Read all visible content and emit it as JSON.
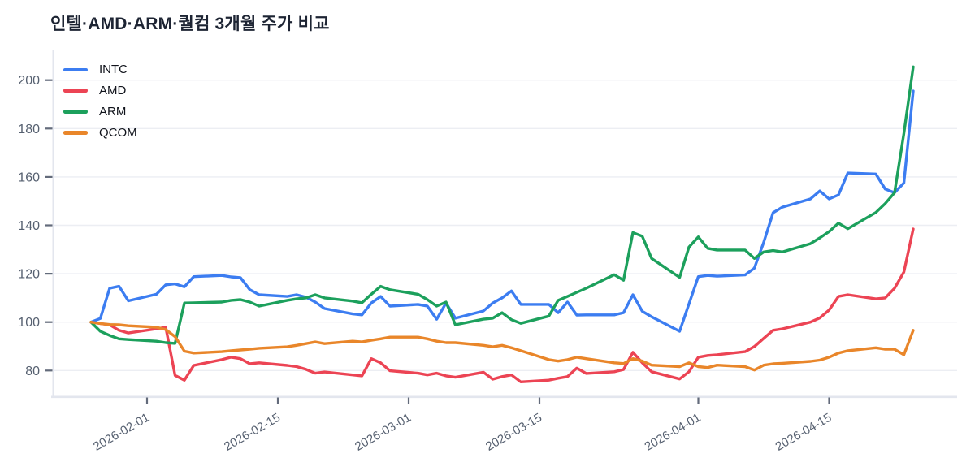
{
  "chart_data": {
    "type": "line",
    "title": "인텔·AMD·ARM·퀄컴 3개월 주가 비교",
    "xlabel": "",
    "ylabel": "",
    "grid": "horizontal",
    "legend_position": "top-left",
    "y_ticks": [
      80,
      100,
      120,
      140,
      160,
      180,
      200
    ],
    "ylim": [
      69,
      212
    ],
    "x_ticks": [
      "2026-02-01",
      "2026-02-15",
      "2026-03-01",
      "2026-03-15",
      "2026-04-01",
      "2026-04-15"
    ],
    "x": [
      "2026-01-26",
      "2026-01-27",
      "2026-01-28",
      "2026-01-29",
      "2026-01-30",
      "2026-02-02",
      "2026-02-03",
      "2026-02-04",
      "2026-02-05",
      "2026-02-06",
      "2026-02-09",
      "2026-02-10",
      "2026-02-11",
      "2026-02-12",
      "2026-02-13",
      "2026-02-16",
      "2026-02-17",
      "2026-02-18",
      "2026-02-19",
      "2026-02-20",
      "2026-02-23",
      "2026-02-24",
      "2026-02-25",
      "2026-02-26",
      "2026-02-27",
      "2026-03-02",
      "2026-03-03",
      "2026-03-04",
      "2026-03-05",
      "2026-03-06",
      "2026-03-09",
      "2026-03-10",
      "2026-03-11",
      "2026-03-12",
      "2026-03-13",
      "2026-03-16",
      "2026-03-17",
      "2026-03-18",
      "2026-03-19",
      "2026-03-20",
      "2026-03-23",
      "2026-03-24",
      "2026-03-25",
      "2026-03-26",
      "2026-03-27",
      "2026-03-30",
      "2026-03-31",
      "2026-04-01",
      "2026-04-02",
      "2026-04-03",
      "2026-04-06",
      "2026-04-07",
      "2026-04-08",
      "2026-04-09",
      "2026-04-10",
      "2026-04-13",
      "2026-04-14",
      "2026-04-15",
      "2026-04-16",
      "2026-04-17",
      "2026-04-20",
      "2026-04-21",
      "2026-04-22",
      "2026-04-23",
      "2026-04-24"
    ],
    "series": [
      {
        "name": "INTC",
        "color": "#3C7DF1",
        "values": [
          100,
          101.5,
          114,
          114.8,
          108.8,
          111.5,
          115.4,
          115.8,
          114.6,
          118.8,
          119.3,
          118.7,
          118.4,
          113.4,
          111.3,
          110.6,
          111.3,
          110.3,
          108.3,
          105.6,
          103.4,
          103,
          107.9,
          110.6,
          106.6,
          107.3,
          106.6,
          101.2,
          107.9,
          101.6,
          104.6,
          107.9,
          110,
          112.9,
          107.3,
          107.3,
          103.9,
          108.3,
          102.9,
          103,
          103,
          103.9,
          111.3,
          104.5,
          102.2,
          96.2,
          107.5,
          118.8,
          119.3,
          119,
          119.5,
          122.3,
          133,
          145.2,
          147.5,
          150.9,
          154.2,
          150.9,
          152.6,
          161.6,
          161.2,
          155,
          153.5,
          157.5,
          195.5
        ]
      },
      {
        "name": "AMD",
        "color": "#EC4454",
        "values": [
          100,
          99.4,
          98.9,
          96.6,
          95.5,
          97.2,
          97.9,
          78,
          76,
          82.1,
          84.5,
          85.5,
          84.9,
          82.8,
          83.2,
          82.1,
          81.6,
          80.5,
          78.9,
          79.4,
          78.2,
          77.8,
          84.9,
          83.2,
          79.9,
          78.9,
          78.2,
          78.9,
          77.8,
          77.2,
          79.3,
          76.4,
          77.5,
          78.2,
          75.3,
          76,
          76.8,
          77.5,
          81,
          78.8,
          79.5,
          80.4,
          87.5,
          83.2,
          79.5,
          76.5,
          79.5,
          85.5,
          86.2,
          86.5,
          87.8,
          89.9,
          93.3,
          96.6,
          97.2,
          100,
          101.7,
          105,
          110.6,
          111.3,
          109.6,
          110,
          114,
          120.7,
          138.5
        ]
      },
      {
        "name": "ARM",
        "color": "#1CA05C",
        "values": [
          100,
          96.2,
          94.5,
          93.1,
          92.8,
          92.1,
          91.5,
          91.2,
          107.9,
          108,
          108.3,
          109,
          109.3,
          108.3,
          106.6,
          109,
          109.6,
          110,
          111.3,
          110,
          108.7,
          108,
          111.5,
          114.8,
          113.4,
          111.5,
          109.3,
          106.6,
          108.3,
          98.9,
          101.2,
          101.6,
          103.9,
          101,
          99.5,
          102.5,
          109,
          110.6,
          112.3,
          114,
          119.6,
          117.3,
          137,
          135.5,
          126.3,
          118.5,
          131,
          135.2,
          130.5,
          129.8,
          129.8,
          126.3,
          129,
          129.6,
          129,
          132.4,
          134.8,
          137.4,
          140.9,
          138.6,
          145.3,
          149,
          153.5,
          178,
          205.5
        ]
      },
      {
        "name": "QCOM",
        "color": "#E9862A",
        "values": [
          100,
          99.4,
          99,
          98.9,
          98.5,
          97.9,
          96.9,
          94,
          88,
          87.2,
          87.8,
          88.2,
          88.5,
          88.8,
          89.2,
          89.8,
          90.4,
          91.1,
          91.8,
          91.1,
          92.1,
          91.8,
          92.5,
          93.1,
          93.8,
          93.8,
          93.1,
          92.1,
          91.5,
          91.5,
          90.4,
          89.8,
          90.4,
          89.4,
          88.2,
          84.5,
          83.9,
          84.5,
          85.5,
          84.9,
          83.2,
          82.9,
          84.9,
          83.9,
          82.2,
          81.6,
          83.2,
          81.6,
          81.2,
          82.2,
          81.6,
          80.2,
          82.2,
          82.8,
          83,
          83.8,
          84.3,
          85.5,
          87.2,
          88.2,
          89.4,
          88.8,
          88.8,
          86.5,
          96.6
        ]
      }
    ],
    "style": {
      "grid_color": "#ECEEF3",
      "spine_color": "#E3E6EE",
      "tick_color": "#636B7B",
      "tick_label_color": "#566070",
      "title_color": "#1D2433"
    }
  }
}
